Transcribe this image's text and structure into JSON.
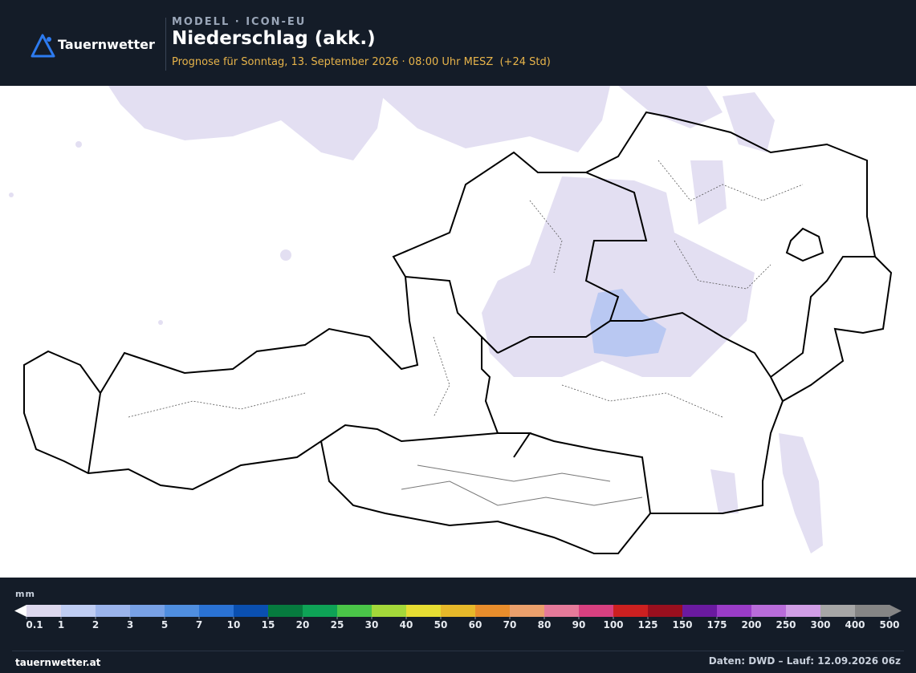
{
  "header": {
    "brand": "Tauernwetter",
    "model": "MODELL · ICON-EU",
    "title": "Niederschlag (akk.)",
    "subtitle": "Prognose für Sonntag, 13. September 2026 · 08:00 Uhr MESZ  (+24 Std)"
  },
  "legend": {
    "unit": "mm",
    "ticks": [
      0.1,
      1,
      2,
      3,
      5,
      7,
      10,
      15,
      20,
      25,
      30,
      40,
      50,
      60,
      70,
      80,
      90,
      100,
      125,
      150,
      175,
      200,
      250,
      300,
      400,
      500
    ],
    "colors": [
      "#ddd8ee",
      "#bfcdf3",
      "#9bb4ec",
      "#78a1e6",
      "#4f8ee0",
      "#2a72d4",
      "#0a4fb0",
      "#067a3e",
      "#0ea256",
      "#4ac548",
      "#a4d83a",
      "#e6dd33",
      "#e6b82a",
      "#e88d2c",
      "#eba06c",
      "#e57a9a",
      "#d84080",
      "#cc2020",
      "#990f1e",
      "#6a1aa0",
      "#9a3cc8",
      "#b86cda",
      "#d09ee6",
      "#a6a6a6",
      "#858585"
    ]
  },
  "footer": {
    "site": "tauernwetter.at",
    "source": "Daten: DWD – Lauf: 12.09.2026 06z"
  }
}
